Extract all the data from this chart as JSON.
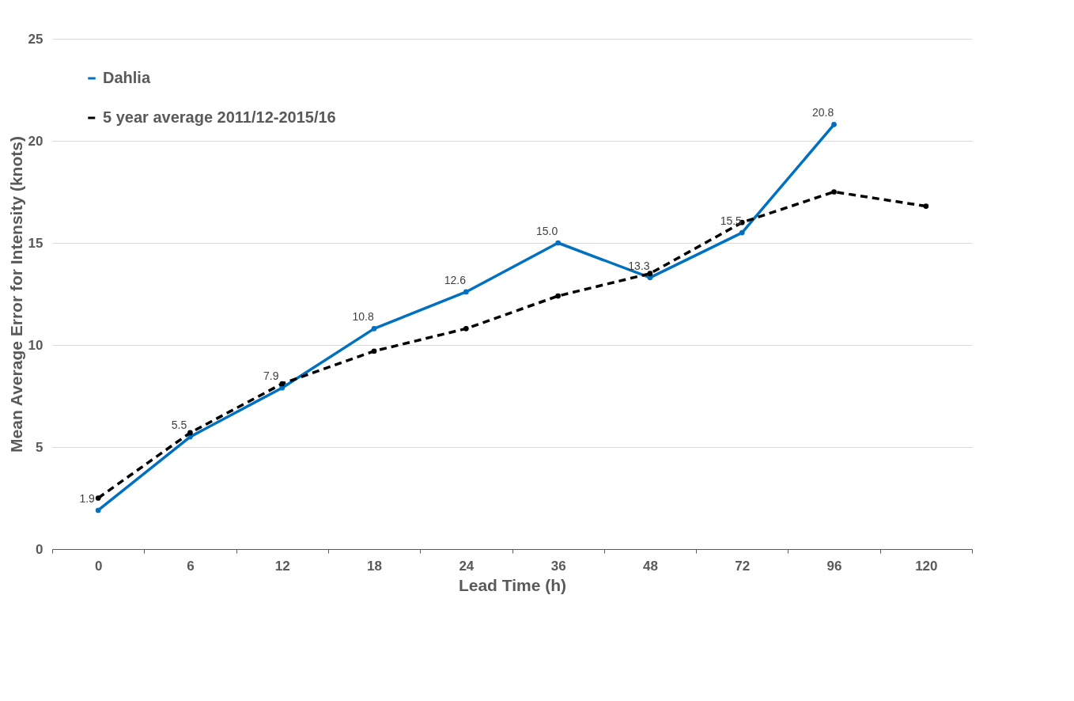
{
  "chart_data": {
    "type": "line",
    "xlabel": "Lead Time (h)",
    "ylabel": "Mean Average Error for Intensity (knots)",
    "categories": [
      "0",
      "6",
      "12",
      "18",
      "24",
      "36",
      "48",
      "72",
      "96",
      "120"
    ],
    "series": [
      {
        "name": "Dahlia",
        "color": "#0070c0",
        "line_style": "solid",
        "values": [
          1.9,
          5.5,
          7.9,
          10.8,
          12.6,
          15.0,
          13.3,
          15.5,
          20.8,
          null
        ],
        "value_labels": [
          "1.9",
          "5.5",
          "7.9",
          "10.8",
          "12.6",
          "15.0",
          "13.3",
          "15.5",
          "20.8",
          null
        ]
      },
      {
        "name": "5 year average 2011/12-2015/16",
        "color": "#000000",
        "line_style": "dashed",
        "values": [
          2.5,
          5.7,
          8.1,
          9.7,
          10.8,
          12.4,
          13.5,
          16.0,
          17.5,
          16.8
        ]
      }
    ],
    "ylim": [
      0,
      25
    ],
    "yticks": [
      0,
      5,
      10,
      15,
      20,
      25
    ],
    "grid": "y",
    "legend": "top left",
    "marker": "circle"
  }
}
